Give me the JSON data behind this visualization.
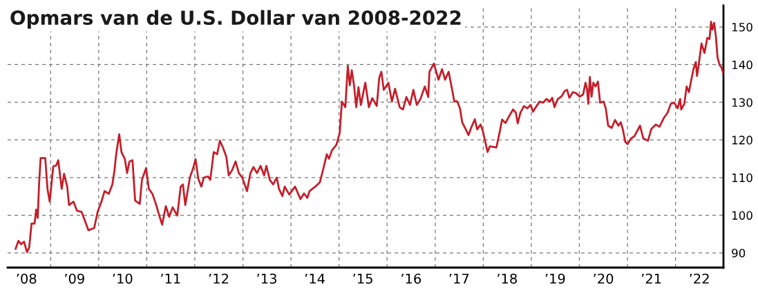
{
  "chart_data": {
    "type": "line",
    "title": "Opmars van de U.S. Dollar van 2008-2022",
    "x": [
      "2008-04-10",
      "2008-05-01",
      "2008-05-22",
      "2008-06-13",
      "2008-07-05",
      "2008-07-22",
      "2008-08-09",
      "2008-09-01",
      "2008-09-13",
      "2008-09-25",
      "2008-10-05",
      "2008-10-17",
      "2008-11-21",
      "2008-12-08",
      "2008-12-25",
      "2009-01-21",
      "2009-02-12",
      "2009-02-28",
      "2009-03-26",
      "2009-04-13",
      "2009-05-07",
      "2009-05-21",
      "2009-06-24",
      "2009-07-20",
      "2009-08-24",
      "2009-09-20",
      "2009-10-15",
      "2009-11-28",
      "2009-12-24",
      "2010-01-19",
      "2010-02-15",
      "2010-03-19",
      "2010-04-15",
      "2010-05-01",
      "2010-05-15",
      "2010-06-06",
      "2010-06-23",
      "2010-07-19",
      "2010-08-05",
      "2010-08-23",
      "2010-09-15",
      "2010-10-05",
      "2010-11-09",
      "2010-11-26",
      "2010-12-27",
      "2011-01-17",
      "2011-02-13",
      "2011-03-09",
      "2011-04-04",
      "2011-04-28",
      "2011-05-26",
      "2011-06-21",
      "2011-07-17",
      "2011-08-21",
      "2011-09-16",
      "2011-10-03",
      "2011-10-21",
      "2011-11-25",
      "2011-12-20",
      "2012-01-07",
      "2012-01-28",
      "2012-02-20",
      "2012-03-10",
      "2012-04-11",
      "2012-04-28",
      "2012-05-24",
      "2012-06-19",
      "2012-07-10",
      "2012-08-02",
      "2012-08-28",
      "2012-09-15",
      "2012-10-10",
      "2012-11-06",
      "2012-12-01",
      "2012-12-27",
      "2013-02-01",
      "2013-02-27",
      "2013-03-22",
      "2013-04-18",
      "2013-05-15",
      "2013-06-11",
      "2013-06-28",
      "2013-07-24",
      "2013-08-19",
      "2013-09-15",
      "2013-10-02",
      "2013-10-28",
      "2013-11-14",
      "2013-12-19",
      "2014-02-01",
      "2014-03-14",
      "2014-04-10",
      "2014-05-05",
      "2014-05-22",
      "2014-07-05",
      "2014-08-09",
      "2014-09-05",
      "2014-09-30",
      "2014-10-17",
      "2014-11-08",
      "2014-12-12",
      "2015-01-06",
      "2015-01-23",
      "2015-02-18",
      "2015-03-09",
      "2015-03-24",
      "2015-04-08",
      "2015-04-25",
      "2015-05-12",
      "2015-05-29",
      "2015-06-16",
      "2015-07-20",
      "2015-08-16",
      "2015-09-11",
      "2015-10-15",
      "2015-11-03",
      "2015-11-19",
      "2015-12-07",
      "2016-01-11",
      "2016-02-07",
      "2016-03-02",
      "2016-04-06",
      "2016-05-01",
      "2016-05-27",
      "2016-06-23",
      "2016-07-19",
      "2016-08-14",
      "2016-09-10",
      "2016-10-14",
      "2016-11-09",
      "2016-11-18",
      "2016-12-22",
      "2017-01-26",
      "2017-02-22",
      "2017-03-17",
      "2017-04-13",
      "2017-05-08",
      "2017-05-26",
      "2017-06-16",
      "2017-07-08",
      "2017-07-25",
      "2017-08-21",
      "2017-09-11",
      "2017-10-03",
      "2017-10-29",
      "2017-11-16",
      "2017-12-12",
      "2017-12-29",
      "2018-02-03",
      "2018-02-20",
      "2018-04-11",
      "2018-05-07",
      "2018-05-24",
      "2018-06-19",
      "2018-07-15",
      "2018-08-16",
      "2018-09-06",
      "2018-09-20",
      "2018-10-10",
      "2018-11-06",
      "2018-12-01",
      "2018-12-27",
      "2019-01-14",
      "2019-02-10",
      "2019-03-05",
      "2019-04-01",
      "2019-04-26",
      "2019-05-22",
      "2019-06-09",
      "2019-06-26",
      "2019-07-22",
      "2019-08-17",
      "2019-09-13",
      "2019-09-30",
      "2019-10-17",
      "2019-11-13",
      "2019-12-08",
      "2020-01-04",
      "2020-01-30",
      "2020-02-17",
      "2020-02-28",
      "2020-03-09",
      "2020-03-21",
      "2020-04-03",
      "2020-04-16",
      "2020-05-03",
      "2020-05-21",
      "2020-06-07",
      "2020-07-03",
      "2020-07-20",
      "2020-08-07",
      "2020-09-03",
      "2020-09-28",
      "2020-10-24",
      "2020-11-11",
      "2020-11-28",
      "2020-12-15",
      "2021-01-02",
      "2021-01-28",
      "2021-02-23",
      "2021-03-19",
      "2021-04-06",
      "2021-05-01",
      "2021-06-06",
      "2021-07-01",
      "2021-08-05",
      "2021-09-01",
      "2021-10-05",
      "2021-11-01",
      "2021-11-26",
      "2021-12-22",
      "2022-01-17",
      "2022-02-05",
      "2022-02-13",
      "2022-03-09",
      "2022-03-26",
      "2022-04-13",
      "2022-04-28",
      "2022-05-17",
      "2022-06-04",
      "2022-06-13",
      "2022-06-24",
      "2022-07-17",
      "2022-08-09",
      "2022-08-30",
      "2022-09-16",
      "2022-09-28",
      "2022-10-07",
      "2022-10-21",
      "2022-11-03",
      "2022-11-16",
      "2022-12-03",
      "2022-12-15",
      "2022-12-29"
    ],
    "series": [
      {
        "color": "#c41e2a",
        "values": [
          91.1,
          93.2,
          92.3,
          93.0,
          90.2,
          91.4,
          97.8,
          97.8,
          101.5,
          99.3,
          108.2,
          115.2,
          115.2,
          107.0,
          103.6,
          113.0,
          113.2,
          114.6,
          107.0,
          111.0,
          107.6,
          102.7,
          103.6,
          101.2,
          100.9,
          98.4,
          96.0,
          96.6,
          100.9,
          103.3,
          106.4,
          105.7,
          108.2,
          111.9,
          116.5,
          121.5,
          116.8,
          114.9,
          111.2,
          114.3,
          114.6,
          103.9,
          103.0,
          109.4,
          112.5,
          107.0,
          105.7,
          103.3,
          100.2,
          97.5,
          102.4,
          99.6,
          102.1,
          99.9,
          107.6,
          108.2,
          102.7,
          110.0,
          112.5,
          114.9,
          109.7,
          107.6,
          110.0,
          110.3,
          109.4,
          116.8,
          116.2,
          119.8,
          118.0,
          115.5,
          110.6,
          111.9,
          114.3,
          111.2,
          110.0,
          106.4,
          111.2,
          112.8,
          111.2,
          113.1,
          110.6,
          113.1,
          109.4,
          108.2,
          110.0,
          107.0,
          105.1,
          107.6,
          105.5,
          107.6,
          104.3,
          105.8,
          104.6,
          106.4,
          107.6,
          108.8,
          112.5,
          116.2,
          115.0,
          117.2,
          118.7,
          121.8,
          130.2,
          128.7,
          139.7,
          134.5,
          138.5,
          134.5,
          128.7,
          134.0,
          129.3,
          135.2,
          128.7,
          131.1,
          129.0,
          136.6,
          138.1,
          133.3,
          135.2,
          130.2,
          133.6,
          128.7,
          128.1,
          131.4,
          129.3,
          133.3,
          129.3,
          130.8,
          134.2,
          131.4,
          138.1,
          140.3,
          136.0,
          138.8,
          136.0,
          138.1,
          133.6,
          130.2,
          130.3,
          128.4,
          124.7,
          122.8,
          121.3,
          123.4,
          125.5,
          122.8,
          124.1,
          122.3,
          116.8,
          118.3,
          118.0,
          122.3,
          125.4,
          124.5,
          126.2,
          128.1,
          127.2,
          124.4,
          127.2,
          129.0,
          128.4,
          129.3,
          127.5,
          129.0,
          130.2,
          129.9,
          130.9,
          130.2,
          131.2,
          128.7,
          130.9,
          131.5,
          133.0,
          133.3,
          131.2,
          132.7,
          132.4,
          131.5,
          132.1,
          135.2,
          133.6,
          129.6,
          136.7,
          131.5,
          135.2,
          134.2,
          135.5,
          129.9,
          130.2,
          128.4,
          123.8,
          123.2,
          125.3,
          123.8,
          124.7,
          122.6,
          119.5,
          118.9,
          120.4,
          121.0,
          122.6,
          123.8,
          120.4,
          119.8,
          122.9,
          124.1,
          123.5,
          125.9,
          127.2,
          129.6,
          129.9,
          128.4,
          130.9,
          128.1,
          129.6,
          134.2,
          132.7,
          135.5,
          138.8,
          140.7,
          137.0,
          139.4,
          145.6,
          143.1,
          147.1,
          146.8,
          151.4,
          149.3,
          151.1,
          147.7,
          141.9,
          139.8,
          139.4,
          137.7
        ]
      }
    ],
    "xlim": [
      "2008-02-09",
      "2022-12-31"
    ],
    "xticks": [
      {
        "value": "2008-07-01",
        "label": "’08"
      },
      {
        "value": "2009-01-01",
        "label": null
      },
      {
        "value": "2009-07-01",
        "label": "’09"
      },
      {
        "value": "2010-01-01",
        "label": null
      },
      {
        "value": "2010-07-01",
        "label": "’10"
      },
      {
        "value": "2011-01-01",
        "label": null
      },
      {
        "value": "2011-07-01",
        "label": "’11"
      },
      {
        "value": "2012-01-01",
        "label": null
      },
      {
        "value": "2012-07-01",
        "label": "’12"
      },
      {
        "value": "2013-01-01",
        "label": null
      },
      {
        "value": "2013-07-01",
        "label": "’13"
      },
      {
        "value": "2014-01-01",
        "label": null
      },
      {
        "value": "2014-07-01",
        "label": "’14"
      },
      {
        "value": "2015-01-01",
        "label": null
      },
      {
        "value": "2015-07-01",
        "label": "’15"
      },
      {
        "value": "2016-01-01",
        "label": null
      },
      {
        "value": "2016-07-01",
        "label": "’16"
      },
      {
        "value": "2017-01-01",
        "label": null
      },
      {
        "value": "2017-07-01",
        "label": "’17"
      },
      {
        "value": "2018-01-01",
        "label": null
      },
      {
        "value": "2018-07-01",
        "label": "’18"
      },
      {
        "value": "2019-01-01",
        "label": null
      },
      {
        "value": "2019-07-01",
        "label": "’19"
      },
      {
        "value": "2020-01-01",
        "label": null
      },
      {
        "value": "2020-07-01",
        "label": "’20"
      },
      {
        "value": "2021-01-01",
        "label": null
      },
      {
        "value": "2021-07-01",
        "label": "’21"
      },
      {
        "value": "2022-01-01",
        "label": null
      },
      {
        "value": "2022-07-01",
        "label": "’22"
      }
    ],
    "ylim": [
      86.1,
      155.7
    ],
    "yticks": [
      90,
      100,
      110,
      120,
      130,
      140,
      150
    ],
    "grid": true,
    "line_style": "solid",
    "marker": "none"
  }
}
